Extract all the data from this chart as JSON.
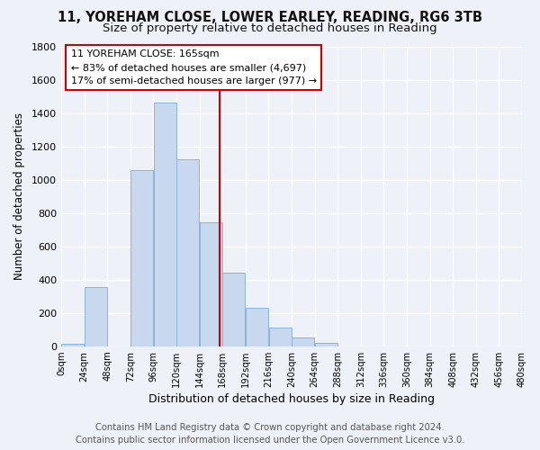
{
  "title": "11, YOREHAM CLOSE, LOWER EARLEY, READING, RG6 3TB",
  "subtitle": "Size of property relative to detached houses in Reading",
  "xlabel": "Distribution of detached houses by size in Reading",
  "ylabel": "Number of detached properties",
  "bin_edges": [
    0,
    24,
    48,
    72,
    96,
    120,
    144,
    168,
    192,
    216,
    240,
    264,
    288,
    312,
    336,
    360,
    384,
    408,
    432,
    456,
    480
  ],
  "bar_heights": [
    15,
    355,
    0,
    1060,
    1465,
    1120,
    745,
    440,
    230,
    110,
    55,
    20,
    0,
    0,
    0,
    0,
    0,
    0,
    0,
    0
  ],
  "bar_color": "#c8d8ee",
  "bar_edgecolor": "#8ab4d8",
  "vline_x": 165,
  "vline_color": "#cc0000",
  "annotation_title": "11 YOREHAM CLOSE: 165sqm",
  "annotation_line1": "← 83% of detached houses are smaller (4,697)",
  "annotation_line2": "17% of semi-detached houses are larger (977) →",
  "annotation_box_edgecolor": "#cc0000",
  "footer_line1": "Contains HM Land Registry data © Crown copyright and database right 2024.",
  "footer_line2": "Contains public sector information licensed under the Open Government Licence v3.0.",
  "ylim": [
    0,
    1800
  ],
  "background_color": "#eef2f8",
  "plot_bg_color": "#eef2f8",
  "grid_color": "#ffffff",
  "title_fontsize": 10.5,
  "subtitle_fontsize": 9.5,
  "footer_fontsize": 7.2,
  "yticks": [
    0,
    200,
    400,
    600,
    800,
    1000,
    1200,
    1400,
    1600,
    1800
  ]
}
